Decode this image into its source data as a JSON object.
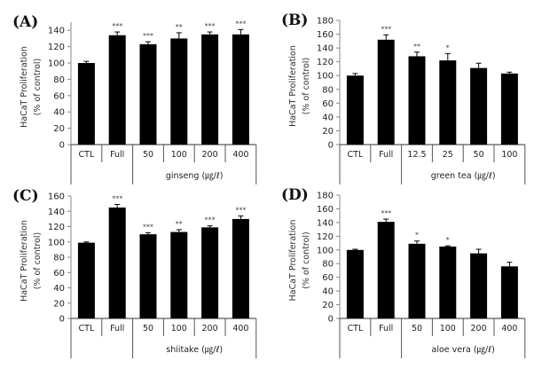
{
  "chart_data": [
    {
      "type": "bar",
      "panel_label": "(A)",
      "ylabel": [
        "HaCaT Proliferation",
        "(% of control)"
      ],
      "yticks": [
        0,
        20,
        40,
        60,
        80,
        100,
        120,
        140
      ],
      "ylim": [
        0,
        150
      ],
      "categories": [
        "CTL",
        "Full",
        "50",
        "100",
        "200",
        "400"
      ],
      "group_label": "ginseng (㎍/ℓ)",
      "values": [
        100,
        134,
        123,
        130,
        135,
        135
      ],
      "errors": [
        2,
        4,
        3,
        7,
        3,
        6
      ],
      "significance": [
        "",
        "***",
        "***",
        "**",
        "***",
        "***"
      ]
    },
    {
      "type": "bar",
      "panel_label": "(B)",
      "ylabel": [
        "HaCaT Proliferation",
        "(% of control)"
      ],
      "yticks": [
        0,
        20,
        40,
        60,
        80,
        100,
        120,
        140,
        160,
        180
      ],
      "ylim": [
        0,
        180
      ],
      "categories": [
        "CTL",
        "Full",
        "12.5",
        "25",
        "50",
        "100"
      ],
      "group_label": "green tea (㎍/ℓ)",
      "values": [
        100,
        152,
        128,
        122,
        111,
        103
      ],
      "errors": [
        3,
        7,
        6,
        10,
        7,
        2
      ],
      "significance": [
        "",
        "***",
        "**",
        "*",
        "",
        ""
      ]
    },
    {
      "type": "bar",
      "panel_label": "(C)",
      "ylabel": [
        "HaCaT Proliferation",
        "(% of control)"
      ],
      "yticks": [
        0,
        20,
        40,
        60,
        80,
        100,
        120,
        140,
        160
      ],
      "ylim": [
        0,
        160
      ],
      "categories": [
        "CTL",
        "Full",
        "50",
        "100",
        "200",
        "400"
      ],
      "group_label": "shiitake (㎍/ℓ)",
      "values": [
        99,
        145,
        110,
        113,
        119,
        130
      ],
      "errors": [
        1,
        4,
        2,
        3,
        2,
        4
      ],
      "significance": [
        "",
        "***",
        "***",
        "**",
        "***",
        "***"
      ]
    },
    {
      "type": "bar",
      "panel_label": "(D)",
      "ylabel": [
        "HaCaT Proliferation",
        "(% of control)"
      ],
      "yticks": [
        0,
        20,
        40,
        60,
        80,
        100,
        120,
        140,
        160,
        180
      ],
      "ylim": [
        0,
        180
      ],
      "categories": [
        "CTL",
        "Full",
        "50",
        "100",
        "200",
        "400"
      ],
      "group_label": "aloe vera (㎍/ℓ)",
      "values": [
        100,
        141,
        109,
        105,
        95,
        76
      ],
      "errors": [
        1,
        4,
        4,
        1,
        6,
        6
      ],
      "significance": [
        "",
        "***",
        "*",
        "*",
        "",
        ""
      ]
    }
  ],
  "colors": {
    "bar": "#000000",
    "axis": "#888888",
    "text": "#222222"
  }
}
